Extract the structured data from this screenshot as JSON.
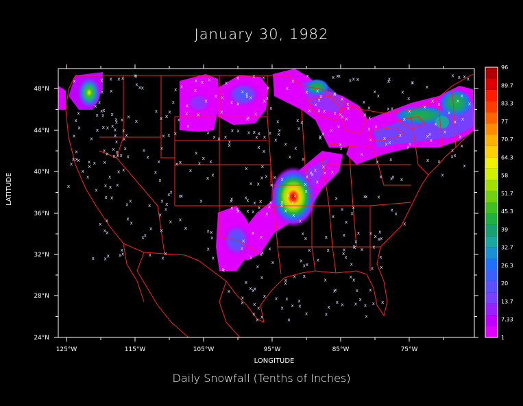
{
  "title": "January 30, 1982",
  "subtitle": "Daily Snowfall (Tenths of Inches)",
  "xlabel": "LONGITUDE",
  "ylabel": "LATITUDE",
  "map": {
    "lon_range": [
      -126,
      -87
    ],
    "lat_range": [
      24,
      50
    ],
    "lon_ticks": [
      "125°W",
      "115°W",
      "105°W",
      "95°W",
      "85°W",
      "75°W"
    ],
    "lat_ticks": [
      "24°N",
      "28°N",
      "32°N",
      "36°N",
      "40°N",
      "44°N",
      "48°N"
    ],
    "border_color": "#ff2020",
    "station_marker": "x"
  },
  "colorbar": {
    "labels": [
      "1",
      "7.33",
      "13.7",
      "20",
      "26.3",
      "32.7",
      "39",
      "45.3",
      "51.7",
      "58",
      "64.3",
      "70.7",
      "77",
      "83.3",
      "89.7",
      "96"
    ],
    "colors": [
      "#e000ff",
      "#c000ff",
      "#9a20ff",
      "#7a40ff",
      "#5a50ff",
      "#3a60ff",
      "#2070ff",
      "#1890d8",
      "#18a8a0",
      "#18a070",
      "#20b040",
      "#40c020",
      "#70d010",
      "#a0e000",
      "#d0f000",
      "#f0f000",
      "#ffd000",
      "#ffb000",
      "#ff8c00",
      "#ff6400",
      "#ff3c00",
      "#ff1c00",
      "#e00000",
      "#b00000"
    ]
  }
}
